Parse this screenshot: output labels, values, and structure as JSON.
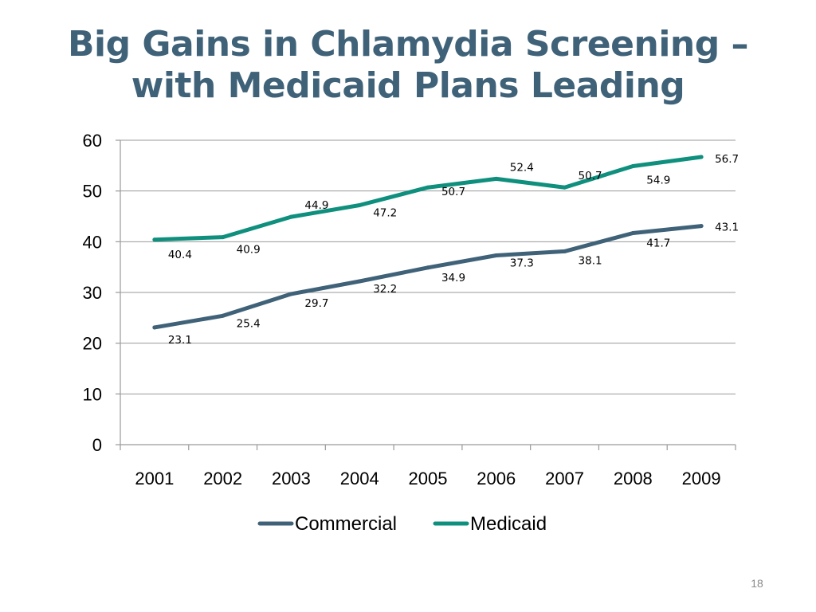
{
  "slide": {
    "title_line1": "Big Gains in Chlamydia Screening –",
    "title_line2": "with Medicaid Plans Leading",
    "page_number": "18"
  },
  "colors": {
    "title": "#3f6279",
    "commercial": "#3f6279",
    "medicaid": "#0f8f7d",
    "gridline": "#9a9a9a"
  },
  "chart_data": {
    "type": "line",
    "title": "",
    "xlabel": "",
    "ylabel": "",
    "categories": [
      "2001",
      "2002",
      "2003",
      "2004",
      "2005",
      "2006",
      "2007",
      "2008",
      "2009"
    ],
    "series": [
      {
        "name": "Commercial",
        "values": [
          23.1,
          25.4,
          29.7,
          32.2,
          34.9,
          37.3,
          38.1,
          41.7,
          43.1
        ]
      },
      {
        "name": "Medicaid",
        "values": [
          40.4,
          40.9,
          44.9,
          47.2,
          50.7,
          52.4,
          50.7,
          54.9,
          56.7
        ]
      }
    ],
    "data_labels": {
      "Commercial": [
        "23.1",
        "25.4",
        "29.7",
        "32.2",
        "34.9",
        "37.3",
        "38.1",
        "41.7",
        "43.1"
      ],
      "Medicaid": [
        "40.4",
        "40.9",
        "44.9",
        "47.2",
        "50.7",
        "52.4",
        "50.7",
        "54.9",
        "56.7"
      ]
    },
    "ylim": [
      0,
      60
    ],
    "yticks": [
      "0",
      "10",
      "20",
      "30",
      "40",
      "50",
      "60"
    ],
    "grid": true,
    "legend_position": "bottom"
  }
}
